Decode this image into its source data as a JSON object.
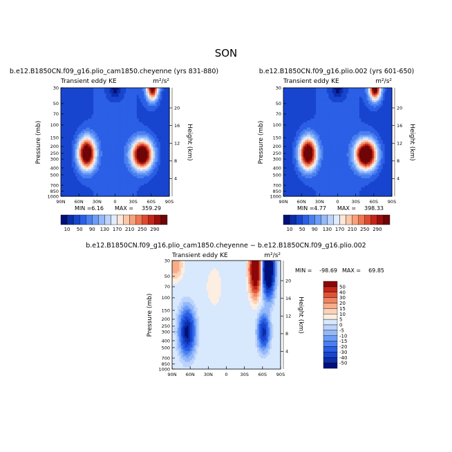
{
  "figure": {
    "title": "SON"
  },
  "colors": {
    "main_scale": [
      "#00107a",
      "#0b2fa8",
      "#1845cf",
      "#2a5fe6",
      "#4a7ff0",
      "#6c9cf5",
      "#93b9fa",
      "#bcd3fc",
      "#e0ecfe",
      "#fde7d8",
      "#fbc8a8",
      "#f7a17a",
      "#ee7652",
      "#de4a30",
      "#c42619",
      "#9c0e0c",
      "#6e0506"
    ],
    "diff_scale": [
      "#00107a",
      "#0b2fa8",
      "#1845cf",
      "#2a5fe6",
      "#4a7ff0",
      "#6c9cf5",
      "#93b9fa",
      "#bcd3fc",
      "#d8e8fd",
      "#fdeee2",
      "#fbd2b8",
      "#f7ad8a",
      "#ef8463",
      "#de5338",
      "#c42619",
      "#8c0808"
    ]
  },
  "chart_data": [
    {
      "type": "heatmap",
      "title": "b.e12.B1850CN.f09_g16.plio_cam1850.cheyenne (yrs 831-880)",
      "left_label": "Transient eddy KE",
      "right_label": "m²/s²",
      "ylabel": "Pressure (mb)",
      "ylabel_right": "Height (km)",
      "x_ticks": [
        "90N",
        "60N",
        "30N",
        "0",
        "30S",
        "60S",
        "90S"
      ],
      "y_ticks": [
        "30",
        "50",
        "70",
        "100",
        "150",
        "200",
        "250",
        "300",
        "400",
        "500",
        "700",
        "850",
        "1000"
      ],
      "y_ticks_right": [
        "20",
        "16",
        "12",
        "8",
        "4"
      ],
      "stats": {
        "min_label": "MIN =",
        "min": "6.16",
        "max_label": "MAX =",
        "max": "359.29"
      },
      "colorbar_labels": [
        "10",
        "50",
        "90",
        "130",
        "170",
        "210",
        "250",
        "290"
      ],
      "features": [
        {
          "lat": -62,
          "p": 30,
          "value": 290,
          "sx": 7,
          "sy": 0.28
        },
        {
          "lat": 47,
          "p": 250,
          "value": 340,
          "sx": 10,
          "sy": 0.35
        },
        {
          "lat": -45,
          "p": 260,
          "value": 350,
          "sx": 12,
          "sy": 0.32
        },
        {
          "lat": 0,
          "p": 30,
          "value": -60,
          "sx": 8,
          "sy": 0.25
        }
      ]
    },
    {
      "type": "heatmap",
      "title": "b.e12.B1850CN.f09_g16.plio.002 (yrs 601-650)",
      "left_label": "Transient eddy KE",
      "right_label": "m²/s²",
      "ylabel": "Pressure (mb)",
      "ylabel_right": "Height (km)",
      "x_ticks": [
        "90N",
        "60N",
        "30N",
        "0",
        "30S",
        "60S",
        "90S"
      ],
      "y_ticks": [
        "30",
        "50",
        "70",
        "100",
        "150",
        "200",
        "250",
        "300",
        "400",
        "500",
        "700",
        "850",
        "1000"
      ],
      "y_ticks_right": [
        "20",
        "16",
        "12",
        "8",
        "4"
      ],
      "stats": {
        "min_label": "MIN =",
        "min": "4.77",
        "max_label": "MAX =",
        "max": "398.33"
      },
      "colorbar_labels": [
        "10",
        "50",
        "90",
        "130",
        "170",
        "210",
        "250",
        "290"
      ],
      "features": [
        {
          "lat": -62,
          "p": 30,
          "value": 310,
          "sx": 7,
          "sy": 0.28
        },
        {
          "lat": 49,
          "p": 250,
          "value": 340,
          "sx": 10,
          "sy": 0.35
        },
        {
          "lat": -47,
          "p": 260,
          "value": 380,
          "sx": 12,
          "sy": 0.32
        },
        {
          "lat": 0,
          "p": 30,
          "value": -60,
          "sx": 8,
          "sy": 0.25
        }
      ]
    },
    {
      "type": "heatmap",
      "title": "b.e12.B1850CN.f09_g16.plio_cam1850.cheyenne − b.e12.B1850CN.f09_g16.plio.002",
      "left_label": "Transient eddy KE",
      "right_label": "m²/s²",
      "ylabel": "Pressure (mb)",
      "ylabel_right": "Height (km)",
      "x_ticks": [
        "90N",
        "60N",
        "30N",
        "0",
        "30S",
        "60S",
        "90S"
      ],
      "y_ticks": [
        "30",
        "50",
        "70",
        "100",
        "150",
        "200",
        "250",
        "300",
        "400",
        "500",
        "700",
        "850",
        "1000"
      ],
      "y_ticks_right": [
        "20",
        "16",
        "12",
        "8",
        "4"
      ],
      "stats": {
        "min_label": "MIN =",
        "min": "-98.69",
        "max_label": "MAX =",
        "max": "69.85"
      },
      "colorbar_labels": [
        "50",
        "40",
        "30",
        "20",
        "15",
        "10",
        "5",
        "0",
        "-5",
        "-10",
        "-15",
        "-20",
        "-30",
        "-40",
        "-50"
      ],
      "features": [
        {
          "lat": -48,
          "p": 40,
          "value": 70,
          "sx": 6,
          "sy": 0.5
        },
        {
          "lat": -70,
          "p": 40,
          "value": -98,
          "sx": 6,
          "sy": 0.5
        },
        {
          "lat": 65,
          "p": 300,
          "value": -55,
          "sx": 8,
          "sy": 0.45
        },
        {
          "lat": -62,
          "p": 300,
          "value": -45,
          "sx": 6,
          "sy": 0.35
        },
        {
          "lat": 85,
          "p": 35,
          "value": 15,
          "sx": 8,
          "sy": 0.3
        },
        {
          "lat": 20,
          "p": 70,
          "value": 4,
          "sx": 10,
          "sy": 0.5
        }
      ]
    }
  ]
}
